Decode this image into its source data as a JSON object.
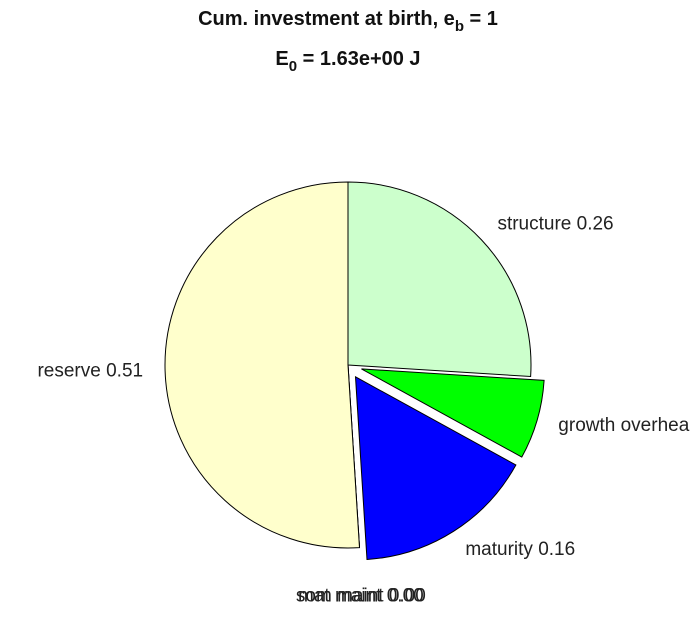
{
  "chart_data": {
    "type": "pie",
    "title": [
      "Cum. investment at birth, e",
      "b",
      " = 1"
    ],
    "subtitle": [
      "E",
      "0",
      " = 1.63e+00 J"
    ],
    "categories": [
      "structure 0.26",
      "growth overhea",
      "maturity 0.16",
      "som maint 0.00",
      "mat maint 0.00",
      "reserve 0.51"
    ],
    "values": [
      0.26,
      0.07,
      0.16,
      0.0,
      0.0,
      0.51
    ],
    "colors": [
      "#ccffcc",
      "#00ff00",
      "#0000ff",
      "#800000",
      "#ff0000",
      "#ffffcc"
    ],
    "explode": [
      false,
      true,
      true,
      false,
      false,
      false
    ]
  }
}
